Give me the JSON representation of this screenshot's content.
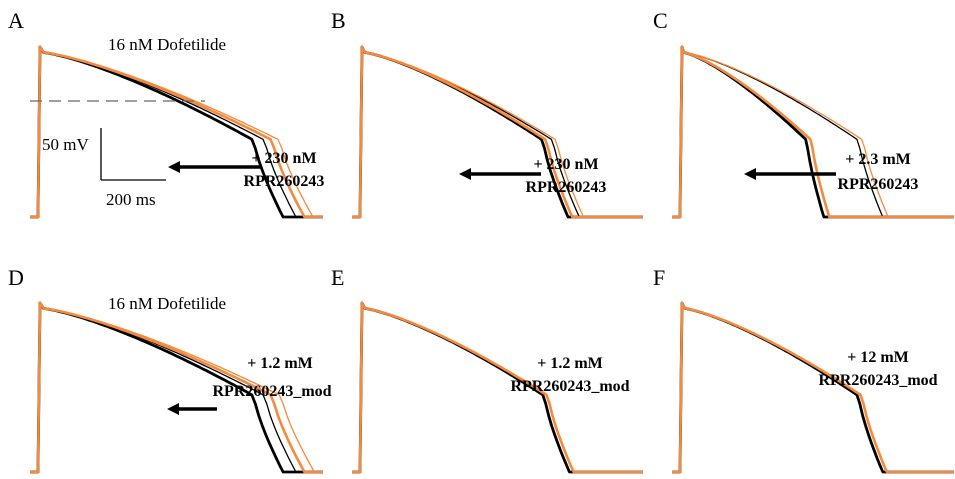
{
  "figure": {
    "colors": {
      "baseline": "#000000",
      "drug": "#f58a3c",
      "arrow": "#000000",
      "dash": "#666666"
    },
    "scale_bar": {
      "voltage": "50 mV",
      "time": "200 ms"
    }
  },
  "chart_data": [
    {
      "type": "line",
      "panel": "A",
      "annotation": "16 nM Dofetilide",
      "label_lines": [
        "+ 230 nM",
        "RPR260243"
      ],
      "has_dashed_reference": true,
      "has_arrow": true,
      "series": [
        {
          "color": "black",
          "apd_rel": [
            0.86,
            0.905
          ]
        },
        {
          "color": "orange",
          "apd_rel": [
            0.935,
            0.965
          ]
        }
      ]
    },
    {
      "type": "line",
      "panel": "B",
      "annotation": "",
      "label_lines": [
        "+ 230 nM",
        "RPR260243"
      ],
      "has_dashed_reference": false,
      "has_arrow": true,
      "series": [
        {
          "color": "black",
          "apd_rel": [
            0.735,
            0.775
          ]
        },
        {
          "color": "orange",
          "apd_rel": [
            0.75,
            0.79
          ]
        }
      ]
    },
    {
      "type": "line",
      "panel": "C",
      "annotation": "",
      "label_lines": [
        "+ 2.3 mM",
        "RPR260243"
      ],
      "has_dashed_reference": false,
      "has_arrow": true,
      "series": [
        {
          "color": "black",
          "apd_rel": [
            0.525,
            0.74
          ]
        },
        {
          "color": "orange",
          "apd_rel": [
            0.545,
            0.76
          ]
        }
      ]
    },
    {
      "type": "line",
      "panel": "D",
      "annotation": "16 nM Dofetilide",
      "label_lines": [
        "+ 1.2 mM",
        "RPR260243_mod"
      ],
      "has_dashed_reference": false,
      "has_arrow": true,
      "series": [
        {
          "color": "black",
          "apd_rel": [
            0.86,
            0.905
          ]
        },
        {
          "color": "orange",
          "apd_rel": [
            0.935,
            0.97
          ]
        }
      ]
    },
    {
      "type": "line",
      "panel": "E",
      "annotation": "",
      "label_lines": [
        "+ 1.2 mM",
        "RPR260243_mod"
      ],
      "has_dashed_reference": false,
      "has_arrow": false,
      "series": [
        {
          "color": "black",
          "apd_rel": [
            0.74
          ]
        },
        {
          "color": "orange",
          "apd_rel": [
            0.755
          ]
        }
      ]
    },
    {
      "type": "line",
      "panel": "F",
      "annotation": "",
      "label_lines": [
        "+ 12 mM",
        "RPR260243_mod"
      ],
      "has_dashed_reference": false,
      "has_arrow": false,
      "series": [
        {
          "color": "black",
          "apd_rel": [
            0.74
          ]
        },
        {
          "color": "orange",
          "apd_rel": [
            0.755
          ]
        }
      ]
    }
  ]
}
